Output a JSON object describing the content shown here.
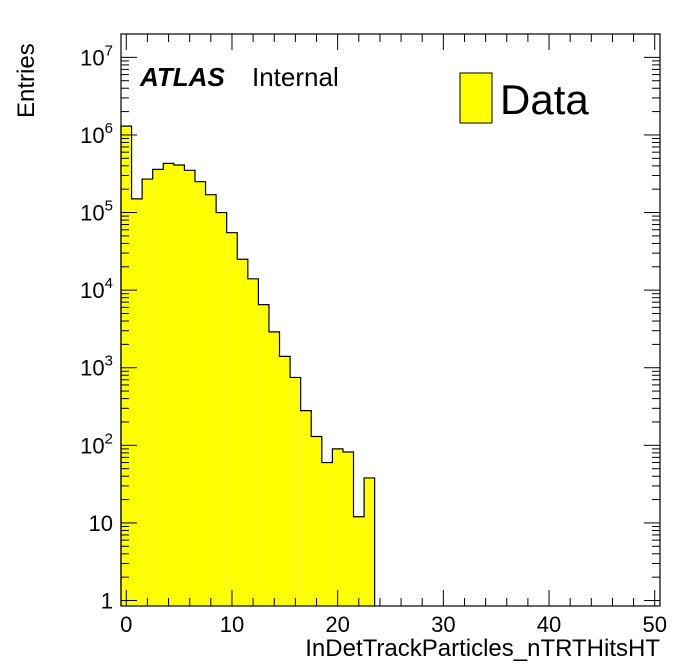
{
  "chart_data": {
    "type": "bar",
    "histogram": true,
    "xlabel": "InDetTrackParticles_nTRTHitsHT",
    "ylabel": "Entries",
    "label_bold": "ATLAS",
    "label_status": "Internal",
    "legend": [
      {
        "name": "Data",
        "color": "#ffff00"
      }
    ],
    "legend_position": "top-right",
    "log_y": true,
    "xlim": [
      -0.5,
      50.5
    ],
    "ylim": [
      0.85,
      20000000
    ],
    "x_ticks": [
      {
        "value": 0,
        "label": "0"
      },
      {
        "value": 10,
        "label": "10"
      },
      {
        "value": 20,
        "label": "20"
      },
      {
        "value": 30,
        "label": "30"
      },
      {
        "value": 40,
        "label": "40"
      },
      {
        "value": 50,
        "label": "50"
      }
    ],
    "y_ticks": [
      {
        "value": 1,
        "base": "1",
        "exp": ""
      },
      {
        "value": 10,
        "base": "10",
        "exp": ""
      },
      {
        "value": 100,
        "base": "10",
        "exp": "2"
      },
      {
        "value": 1000,
        "base": "10",
        "exp": "3"
      },
      {
        "value": 10000,
        "base": "10",
        "exp": "4"
      },
      {
        "value": 100000,
        "base": "10",
        "exp": "5"
      },
      {
        "value": 1000000,
        "base": "10",
        "exp": "6"
      },
      {
        "value": 10000000,
        "base": "10",
        "exp": "7"
      }
    ],
    "bin_width": 1,
    "x": [
      0,
      1,
      2,
      3,
      4,
      5,
      6,
      7,
      8,
      9,
      10,
      11,
      12,
      13,
      14,
      15,
      16,
      17,
      18,
      19,
      20,
      21,
      22,
      23
    ],
    "values": [
      1300000,
      150000,
      270000,
      360000,
      430000,
      410000,
      350000,
      250000,
      170000,
      100000,
      55000,
      25000,
      14000,
      6500,
      2900,
      1400,
      750,
      280,
      130,
      60,
      90,
      82,
      12,
      38
    ],
    "fill_color": "#ffff00",
    "line_color": "#000000"
  }
}
